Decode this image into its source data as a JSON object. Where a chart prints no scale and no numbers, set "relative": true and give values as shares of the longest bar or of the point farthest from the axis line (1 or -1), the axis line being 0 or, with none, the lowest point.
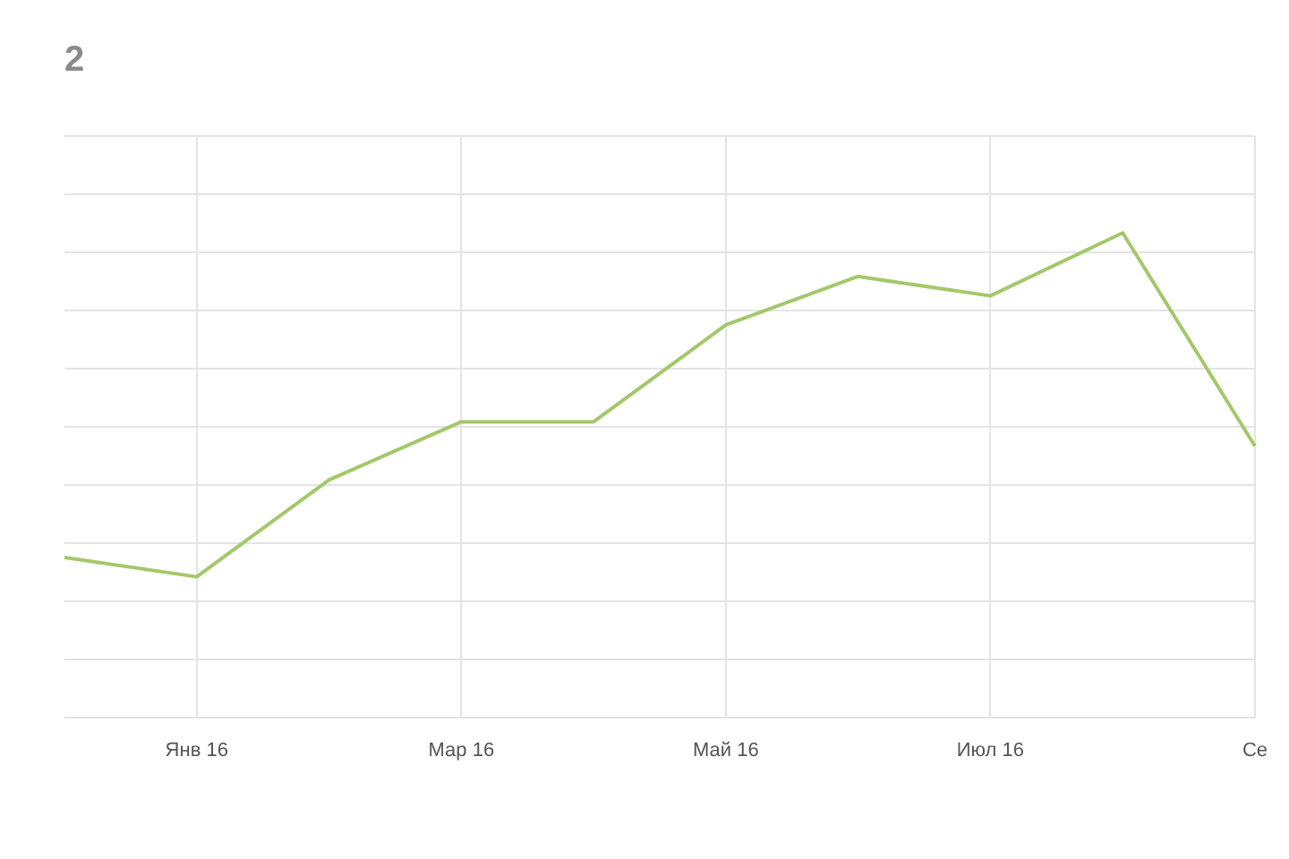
{
  "chart_data": {
    "type": "line",
    "title": "2",
    "relative": true,
    "grid": true,
    "legend": false,
    "marker": "none",
    "line_style": "solid",
    "categories": [
      null,
      "Янв 16",
      null,
      "Мар 16",
      null,
      "Май 16",
      null,
      "Июл 16",
      null,
      "Се"
    ],
    "series": [
      {
        "color": "#a3c86a",
        "values": [
          0.33,
          0.29,
          0.49,
          0.61,
          0.61,
          0.81,
          0.91,
          0.87,
          1,
          0.56
        ]
      }
    ]
  }
}
